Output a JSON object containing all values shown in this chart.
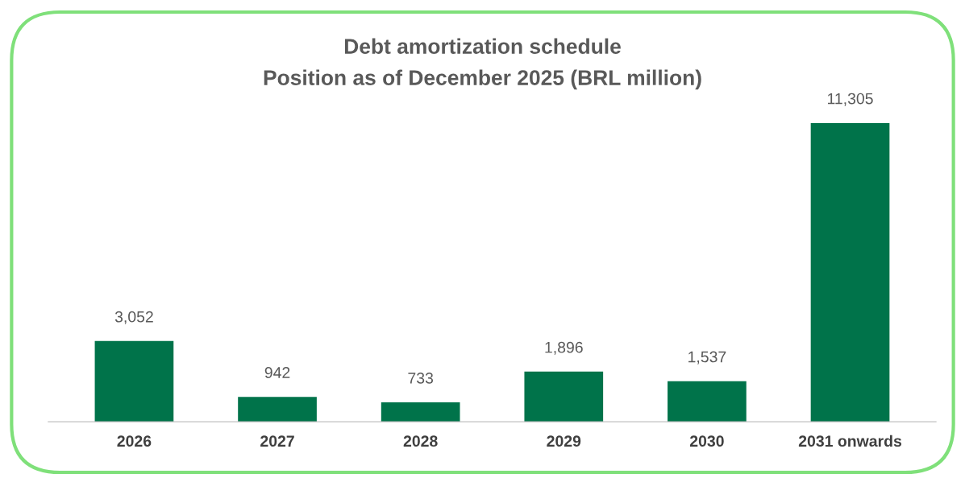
{
  "chart_data": {
    "type": "bar",
    "title": "Debt amortization schedule",
    "subtitle": "Position as of December 2025 (BRL million)",
    "categories": [
      "2026",
      "2027",
      "2028",
      "2029",
      "2030",
      "2031 onwards"
    ],
    "values": [
      3052,
      942,
      733,
      1896,
      1537,
      11305
    ],
    "value_labels": [
      "3,052",
      "942",
      "733",
      "1,896",
      "1,537",
      "11,305"
    ],
    "color": "#00734a",
    "grid": false,
    "legend": false
  }
}
